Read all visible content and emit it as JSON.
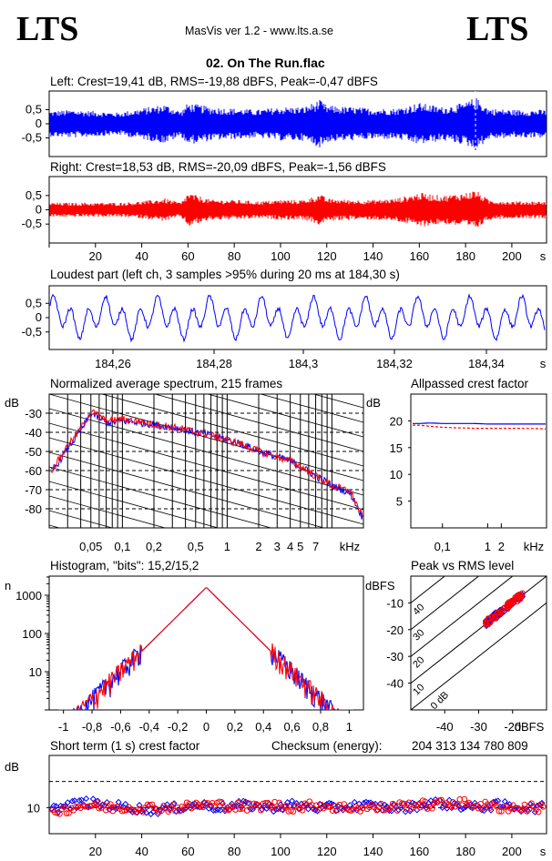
{
  "header": {
    "logo_left": "LTS",
    "logo_right": "LTS",
    "app_line": "MasVis ver 1.2 - www.lts.a.se",
    "file_title": "02. On The Run.flac"
  },
  "waveform": {
    "left_label": "Left: Crest=19,41 dB, RMS=-19,88 dBFS, Peak=-0,47 dBFS",
    "right_label": "Right: Crest=18,53 dB, RMS=-20,09 dBFS, Peak=-1,56 dBFS",
    "yticks": [
      "0,5",
      "0",
      "-0,5"
    ],
    "xticks": [
      "20",
      "40",
      "60",
      "80",
      "100",
      "120",
      "140",
      "160",
      "180",
      "200"
    ],
    "xunit": "s",
    "left_color": "#0000ff",
    "right_color": "#ff0000"
  },
  "loudest": {
    "label": "Loudest part (left  ch, 3 samples >95% during 20 ms at 184,30 s)",
    "yticks": [
      "0,5",
      "0",
      "-0,5"
    ],
    "xticks": [
      "184,26",
      "184,28",
      "184,3",
      "184,32",
      "184,34"
    ],
    "xunit": "s"
  },
  "spectrum": {
    "label": "Normalized average spectrum, 215 frames",
    "yunit": "dB",
    "yticks": [
      "-30",
      "-40",
      "-50",
      "-60",
      "-70",
      "-80"
    ],
    "xticks": [
      "0,05",
      "0,1",
      "0,2",
      "0,5",
      "1",
      "2",
      "3",
      "4",
      "5",
      "7"
    ],
    "xunit": "kHz"
  },
  "allpassed": {
    "label": "Allpassed crest factor",
    "yunit": "dB",
    "yticks": [
      "20",
      "15",
      "10",
      "5"
    ],
    "xticks": [
      "0,1",
      "1",
      "2"
    ],
    "xunit": "kHz"
  },
  "histogram": {
    "label": "Histogram, \"bits\": 15,2/15,2",
    "yunit": "n",
    "yticks": [
      "1000",
      "100",
      "10"
    ],
    "xticks": [
      "-1",
      "-0,8",
      "-0,6",
      "-0,4",
      "-0,2",
      "0",
      "0,2",
      "0,4",
      "0,6",
      "0,8",
      "1"
    ]
  },
  "peakrms": {
    "label": "Peak vs RMS level",
    "yunit": "dBFS",
    "yticks": [
      "-10",
      "-20",
      "-30",
      "-40"
    ],
    "xticks": [
      "-40",
      "-30",
      "-20"
    ],
    "xunit": "dBFS",
    "diag_labels": [
      "40",
      "30",
      "20",
      "10",
      "0 dB"
    ]
  },
  "shortterm": {
    "label": "Short term (1 s) crest factor",
    "checksum_label": "Checksum (energy):",
    "checksum_value": "204 313 134 780 809",
    "yunit": "dB",
    "yticks": [
      "10"
    ],
    "xticks": [
      "20",
      "40",
      "60",
      "80",
      "100",
      "120",
      "140",
      "160",
      "180",
      "200"
    ],
    "xunit": "s"
  },
  "chart_data": [
    {
      "type": "area",
      "title": "Left: Crest=19,41 dB, RMS=-19,88 dBFS, Peak=-0,47 dBFS",
      "xlim": [
        0,
        215
      ],
      "ylim": [
        -1,
        1
      ],
      "series": [
        {
          "name": "Left",
          "color": "#0000ff",
          "x": [
            0,
            10,
            20,
            30,
            40,
            50,
            57,
            60,
            70,
            80,
            90,
            100,
            110,
            117,
            120,
            130,
            140,
            150,
            160,
            170,
            180,
            184.3,
            190,
            200,
            210
          ],
          "values": [
            0.45,
            0.5,
            0.45,
            0.4,
            0.55,
            0.7,
            0.45,
            0.75,
            0.6,
            0.55,
            0.5,
            0.6,
            0.6,
            0.85,
            0.65,
            0.6,
            0.55,
            0.55,
            0.75,
            0.6,
            0.75,
            0.95,
            0.55,
            0.5,
            0.5
          ]
        }
      ]
    },
    {
      "type": "area",
      "title": "Right: Crest=18,53 dB, RMS=-20,09 dBFS, Peak=-1,56 dBFS",
      "xlim": [
        0,
        215
      ],
      "ylim": [
        -1,
        1
      ],
      "series": [
        {
          "name": "Right",
          "color": "#ff0000",
          "x": [
            0,
            10,
            20,
            30,
            40,
            50,
            57,
            60,
            70,
            80,
            90,
            100,
            110,
            117,
            120,
            130,
            140,
            150,
            160,
            170,
            180,
            184.3,
            190,
            200,
            210
          ],
          "values": [
            0.25,
            0.25,
            0.25,
            0.25,
            0.3,
            0.4,
            0.25,
            0.6,
            0.35,
            0.35,
            0.3,
            0.35,
            0.35,
            0.55,
            0.4,
            0.35,
            0.35,
            0.4,
            0.6,
            0.5,
            0.6,
            0.7,
            0.35,
            0.3,
            0.3
          ]
        }
      ]
    },
    {
      "type": "line",
      "title": "Loudest part (left  ch, 3 samples >95% during 20 ms at 184,30 s)",
      "xlim": [
        184.25,
        184.345
      ],
      "ylim": [
        -1,
        1
      ]
    },
    {
      "type": "line",
      "title": "Normalized average spectrum, 215 frames",
      "ylim": [
        -90,
        -20
      ],
      "series": [
        {
          "name": "L",
          "color": "#0000ff",
          "x": [
            0.02,
            0.03,
            0.04,
            0.05,
            0.07,
            0.1,
            0.2,
            0.5,
            1,
            2,
            3,
            4,
            5,
            7,
            10,
            15,
            20
          ],
          "values": [
            -62,
            -48,
            -39,
            -30,
            -35,
            -34,
            -36,
            -40,
            -44,
            -50,
            -53,
            -55,
            -58,
            -63,
            -68,
            -72,
            -86
          ]
        },
        {
          "name": "R",
          "color": "#ff0000",
          "x": [
            0.02,
            0.03,
            0.04,
            0.05,
            0.07,
            0.1,
            0.2,
            0.5,
            1,
            2,
            3,
            4,
            5,
            7,
            10,
            15,
            20
          ],
          "values": [
            -61,
            -47,
            -38,
            -29,
            -34,
            -33,
            -36,
            -40,
            -44,
            -50,
            -53,
            -55,
            -58,
            -63,
            -68,
            -71,
            -86
          ]
        }
      ]
    },
    {
      "type": "line",
      "title": "Allpassed crest factor",
      "ylim": [
        0,
        25
      ],
      "series": [
        {
          "name": "L",
          "color": "#0000ff",
          "x": [
            0.03,
            0.05,
            0.1,
            0.2,
            0.5,
            1,
            2,
            5,
            20
          ],
          "values": [
            19.5,
            19.6,
            19.5,
            19.5,
            19.5,
            19.4,
            19.4,
            19.4,
            19.4
          ]
        },
        {
          "name": "R",
          "color": "#ff0000",
          "x": [
            0.03,
            0.05,
            0.1,
            0.2,
            0.5,
            1,
            2,
            5,
            20
          ],
          "values": [
            19.2,
            19.0,
            18.8,
            18.7,
            18.6,
            18.6,
            18.6,
            18.6,
            18.5
          ]
        }
      ]
    },
    {
      "type": "line",
      "title": "Histogram, \"bits\": 15,2/15,2",
      "xlim": [
        -1.1,
        1.1
      ],
      "series": [
        {
          "name": "L",
          "color": "#0000ff",
          "x": [
            -0.9,
            -0.8,
            -0.6,
            -0.4,
            -0.2,
            -0.1,
            0,
            0.1,
            0.2,
            0.4,
            0.6,
            0.8,
            0.9
          ],
          "values": [
            2,
            3,
            10,
            60,
            400,
            900,
            1600,
            900,
            400,
            60,
            10,
            3,
            2
          ]
        },
        {
          "name": "R",
          "color": "#ff0000",
          "x": [
            -0.9,
            -0.8,
            -0.6,
            -0.4,
            -0.2,
            -0.1,
            0,
            0.1,
            0.2,
            0.4,
            0.6,
            0.8,
            0.9
          ],
          "values": [
            1,
            2,
            8,
            55,
            380,
            880,
            1600,
            880,
            380,
            55,
            8,
            2,
            1
          ]
        }
      ]
    },
    {
      "type": "scatter",
      "title": "Peak vs RMS level",
      "xlim": [
        -50,
        -10
      ],
      "ylim": [
        -50,
        0
      ],
      "series": [
        {
          "name": "L",
          "color": "#0000ff",
          "x": [
            -27,
            -26,
            -25,
            -24,
            -23,
            -22,
            -21,
            -20,
            -19,
            -18,
            -17
          ],
          "values": [
            -18,
            -17,
            -16,
            -15,
            -14,
            -13,
            -12,
            -11,
            -10,
            -9,
            -8
          ]
        },
        {
          "name": "R",
          "color": "#ff0000",
          "x": [
            -28,
            -27,
            -26,
            -25,
            -24,
            -23,
            -22,
            -21,
            -20,
            -19,
            -18
          ],
          "values": [
            -18,
            -17,
            -16,
            -15,
            -14,
            -13,
            -12,
            -11,
            -10,
            -9,
            -8
          ]
        }
      ]
    },
    {
      "type": "scatter",
      "title": "Short term (1 s) crest factor",
      "xlim": [
        0,
        215
      ],
      "ylim": [
        0,
        30
      ],
      "series": [
        {
          "name": "L",
          "color": "#0000ff",
          "x": [
            5,
            15,
            25,
            35,
            45,
            55,
            65,
            75,
            85,
            95,
            105,
            115,
            125,
            135,
            145,
            155,
            165,
            175,
            185,
            195,
            205
          ],
          "values": [
            10,
            12,
            11,
            10,
            9,
            10,
            11,
            10,
            11,
            10,
            11,
            10,
            10,
            11,
            10,
            10,
            12,
            11,
            10,
            11,
            10
          ]
        },
        {
          "name": "R",
          "color": "#ff0000",
          "x": [
            5,
            15,
            25,
            35,
            45,
            55,
            65,
            75,
            85,
            95,
            105,
            115,
            125,
            135,
            145,
            155,
            165,
            175,
            185,
            195,
            205
          ],
          "values": [
            9,
            11,
            10,
            10,
            10,
            10,
            11,
            11,
            10,
            11,
            10,
            11,
            10,
            10,
            10,
            11,
            11,
            12,
            11,
            10,
            10
          ]
        }
      ]
    }
  ]
}
